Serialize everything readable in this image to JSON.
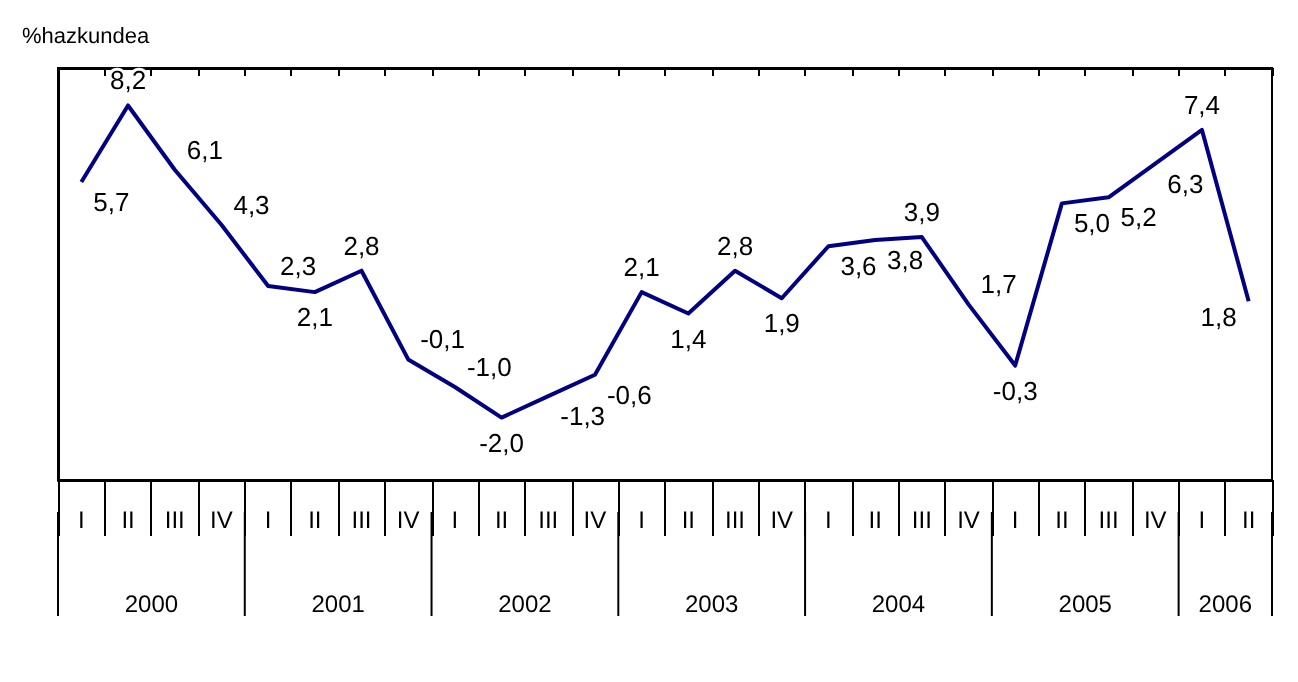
{
  "chart_data": {
    "type": "line",
    "ylabel": "%hazkundea",
    "categories": [
      "I",
      "II",
      "III",
      "IV",
      "I",
      "II",
      "III",
      "IV",
      "I",
      "II",
      "III",
      "IV",
      "I",
      "II",
      "III",
      "IV",
      "I",
      "II",
      "III",
      "IV",
      "I",
      "II",
      "III",
      "IV",
      "I",
      "II"
    ],
    "series": [
      {
        "color": "#000080",
        "values": [
          5.7,
          8.2,
          6.1,
          4.3,
          2.3,
          2.1,
          2.8,
          -0.1,
          -1.0,
          -2.0,
          -1.3,
          -0.6,
          2.1,
          1.4,
          2.8,
          1.9,
          3.6,
          3.8,
          3.9,
          1.7,
          -0.3,
          5.0,
          5.2,
          6.3,
          7.4,
          1.8
        ],
        "value_labels": [
          "5,7",
          "8,2",
          "6,1",
          "4,3",
          "2,3",
          "2,1",
          "2,8",
          "-0,1",
          "-1,0",
          "-2,0",
          "-1,3",
          "-0,6",
          "2,1",
          "1,4",
          "2,8",
          "1,9",
          "3,6",
          "3,8",
          "3,9",
          "1,7",
          "-0,3",
          "5,0",
          "5,2",
          "6,3",
          "7,4",
          "1,8"
        ]
      }
    ],
    "annotations": [
      "2000",
      "2001",
      "2002",
      "2003",
      "2004",
      "2005",
      "2006"
    ],
    "grid": false,
    "marker": "none",
    "line_style": "solid"
  }
}
